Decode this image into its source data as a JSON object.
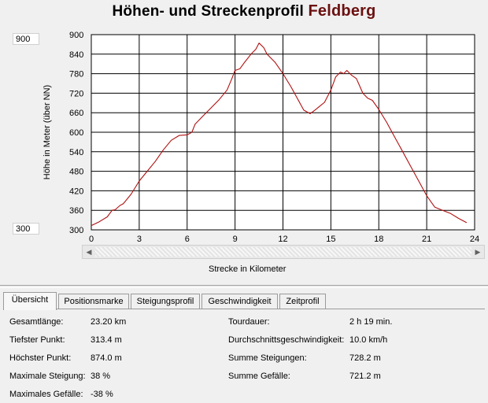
{
  "title": {
    "prefix": "Höhen- und Streckenprofil",
    "name": "Feldberg"
  },
  "scale": {
    "max": "900",
    "min": "300"
  },
  "chart_data": {
    "type": "line",
    "xlabel": "Strecke in Kilometer",
    "ylabel": "Höhe in Meter (über NN)",
    "xlim": [
      0,
      24
    ],
    "ylim": [
      300,
      900
    ],
    "x_ticks": [
      "0",
      "3",
      "6",
      "9",
      "12",
      "15",
      "18",
      "21",
      "24"
    ],
    "y_ticks": [
      "900",
      "840",
      "780",
      "720",
      "660",
      "600",
      "540",
      "480",
      "420",
      "360",
      "300"
    ],
    "grid": true,
    "line_color": "#b01010",
    "series": [
      {
        "x": [
          0,
          0.5,
          1.0,
          1.3,
          1.5,
          1.8,
          2.0,
          2.5,
          3.0,
          3.5,
          4.0,
          4.5,
          5.0,
          5.5,
          6.0,
          6.3,
          6.5,
          7.0,
          7.5,
          8.0,
          8.5,
          8.8,
          9.0,
          9.3,
          9.6,
          10.0,
          10.3,
          10.5,
          10.8,
          11.0,
          11.5,
          12.0,
          12.5,
          13.0,
          13.3,
          13.7,
          14.0,
          14.3,
          14.6,
          15.0,
          15.3,
          15.6,
          15.8,
          16.0,
          16.3,
          16.6,
          17.0,
          17.3,
          17.6,
          18.0,
          18.5,
          19.0,
          19.5,
          20.0,
          20.5,
          21.0,
          21.5,
          22.0,
          22.5,
          23.0,
          23.5
        ],
        "y": [
          313,
          325,
          340,
          360,
          362,
          375,
          380,
          410,
          450,
          480,
          510,
          545,
          575,
          590,
          592,
          600,
          625,
          650,
          675,
          700,
          730,
          765,
          790,
          795,
          815,
          840,
          855,
          874,
          860,
          840,
          815,
          780,
          740,
          695,
          668,
          657,
          668,
          680,
          692,
          730,
          770,
          785,
          780,
          790,
          775,
          765,
          720,
          705,
          698,
          670,
          630,
          585,
          540,
          495,
          450,
          405,
          370,
          360,
          350,
          335,
          322
        ]
      }
    ]
  },
  "scrollbar": {
    "left_arrow": "◀",
    "right_arrow": "▶"
  },
  "tabs": [
    {
      "label": "Übersicht"
    },
    {
      "label": "Positionsmarke"
    },
    {
      "label": "Steigungsprofil"
    },
    {
      "label": "Geschwindigkeit"
    },
    {
      "label": "Zeitprofil"
    }
  ],
  "stats": {
    "gesamtlaenge": {
      "label": "Gesamtlänge:",
      "value": "23.20 km"
    },
    "tiefster": {
      "label": "Tiefster Punkt:",
      "value": "313.4 m"
    },
    "hoechster": {
      "label": "Höchster Punkt:",
      "value": "874.0 m"
    },
    "max_steigung": {
      "label": "Maximale Steigung:",
      "value": "38 %"
    },
    "max_gefaelle": {
      "label": "Maximales Gefälle:",
      "value": "-38 %"
    },
    "tourdauer": {
      "label": "Tourdauer:",
      "value": "2 h 19 min."
    },
    "durchschnitt": {
      "label": "Durchschnittsgeschwindigkeit:",
      "value": "10.0 km/h"
    },
    "summe_steigungen": {
      "label": "Summe Steigungen:",
      "value": "728.2 m"
    },
    "summe_gefaelle": {
      "label": "Summe Gefälle:",
      "value": "721.2 m"
    }
  }
}
